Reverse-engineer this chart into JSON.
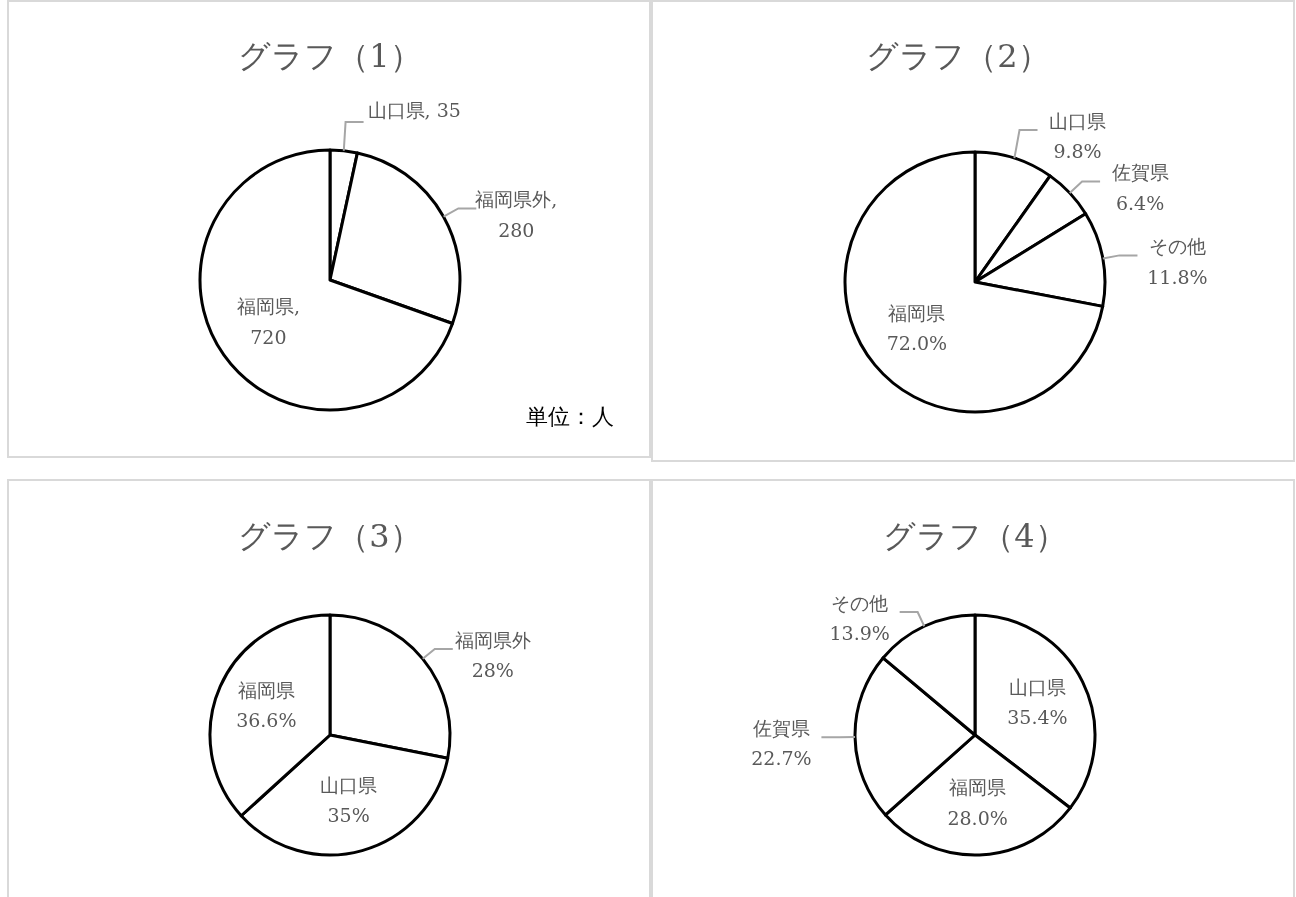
{
  "chart_data": [
    {
      "type": "pie",
      "title": "グラフ（1）",
      "categories": [
        "山口県",
        "福岡県外",
        "福岡県"
      ],
      "values": [
        35,
        280,
        720
      ],
      "colors": [
        "#ffffff",
        "#ffffff",
        "#ffffff"
      ],
      "value_labels": [
        ", 35",
        ",\n280",
        ",\n720"
      ],
      "annotations": [
        "単位：人"
      ]
    },
    {
      "type": "pie",
      "title": "グラフ（2）",
      "categories": [
        "山口県",
        "佐賀県",
        "その他",
        "福岡県"
      ],
      "values": [
        9.8,
        6.4,
        11.8,
        72.0
      ],
      "colors": [
        "#ffffff",
        "#ffffff",
        "#ffffff",
        "#ffffff"
      ],
      "value_labels": [
        "\n9.8%",
        "\n6.4%",
        "\n11.8%",
        "\n72.0%"
      ]
    },
    {
      "type": "pie",
      "title": "グラフ（3）",
      "categories": [
        "福岡県外",
        "山口県",
        "福岡県"
      ],
      "values": [
        28,
        35,
        36.6
      ],
      "colors": [
        "#ffffff",
        "#ffffff",
        "#ffffff"
      ],
      "value_labels": [
        "\n28%",
        "\n35%",
        "\n36.6%"
      ]
    },
    {
      "type": "pie",
      "title": "グラフ（4）",
      "categories": [
        "山口県",
        "福岡県",
        "佐賀県",
        "その他"
      ],
      "values": [
        35.4,
        28.0,
        22.7,
        13.9
      ],
      "colors": [
        "#ffffff",
        "#ffffff",
        "#ffffff",
        "#ffffff"
      ],
      "value_labels": [
        "\n35.4%",
        "\n28.0%",
        "\n22.7%",
        "\n13.9%"
      ]
    }
  ]
}
